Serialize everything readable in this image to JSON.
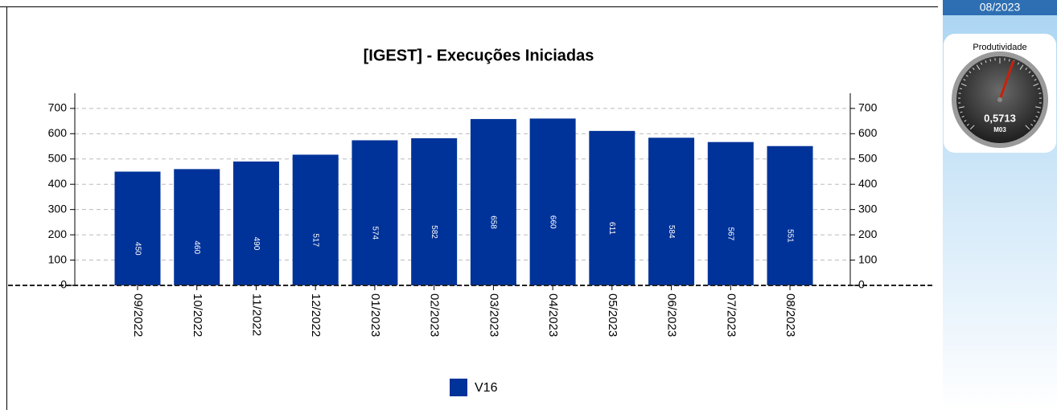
{
  "chart_data": {
    "type": "bar",
    "title": "[IGEST]  - Execuções Iniciadas",
    "categories": [
      "09/2022",
      "10/2022",
      "11/2022",
      "12/2022",
      "01/2023",
      "02/2023",
      "03/2023",
      "04/2023",
      "05/2023",
      "06/2023",
      "07/2023",
      "08/2023"
    ],
    "series": [
      {
        "name": "V16",
        "color": "#003399",
        "values": [
          450,
          460,
          490,
          517,
          574,
          582,
          658,
          660,
          611,
          584,
          567,
          551
        ]
      }
    ],
    "ylim": [
      0,
      760
    ],
    "yticks": [
      0,
      100,
      200,
      300,
      400,
      500,
      600,
      700
    ],
    "grid": true,
    "legend": "bottom"
  },
  "panel": {
    "period": "08/2023",
    "gauge": {
      "title": "Produtividade",
      "value": 0.5713,
      "value_label": "0,5713",
      "code": "M03",
      "range": [
        0,
        1
      ]
    }
  }
}
